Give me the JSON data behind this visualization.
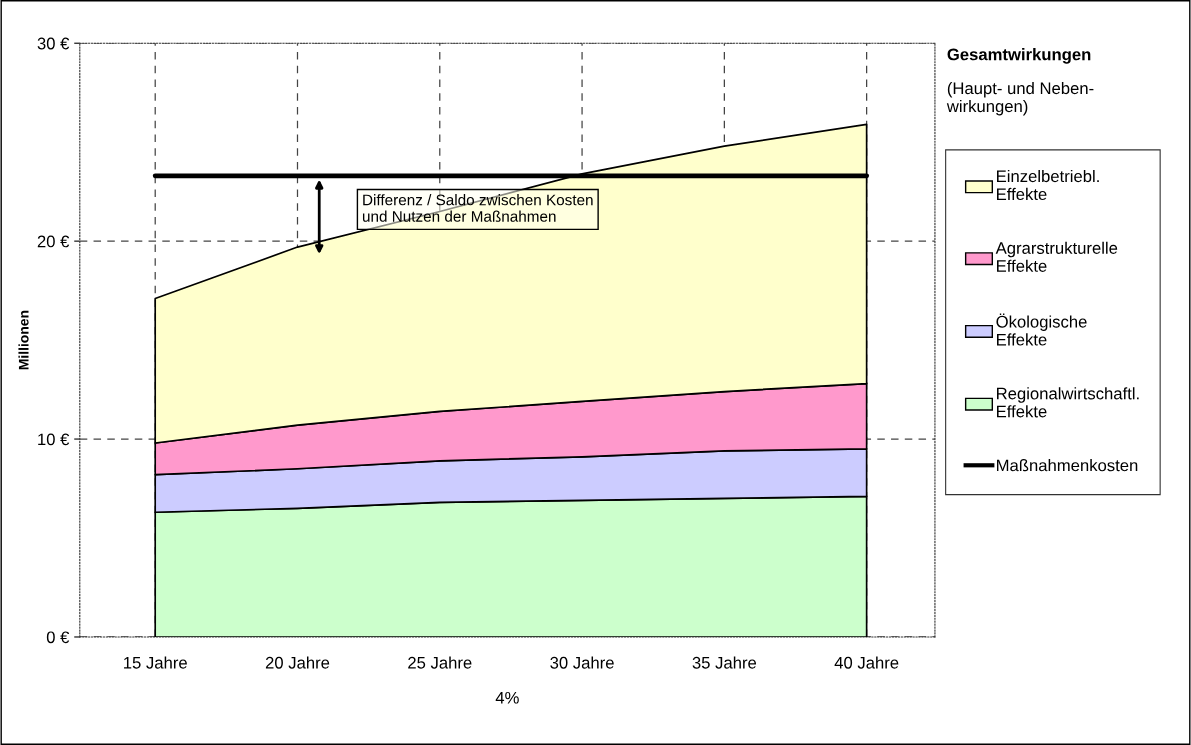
{
  "chart_data": {
    "type": "area",
    "stacked": true,
    "categories": [
      "15 Jahre",
      "20 Jahre",
      "25 Jahre",
      "30 Jahre",
      "35 Jahre",
      "40 Jahre"
    ],
    "series": [
      {
        "name": "Regionalwirtschaftl.\nEffekte",
        "color": "#ccffcc",
        "values": [
          6.3,
          6.5,
          6.8,
          6.9,
          7.0,
          7.1
        ]
      },
      {
        "name": "Ökologische\nEffekte",
        "color": "#ccccff",
        "values": [
          1.9,
          2.0,
          2.1,
          2.2,
          2.4,
          2.4
        ]
      },
      {
        "name": "Agrarstrukturelle\nEffekte",
        "color": "#ff99cc",
        "values": [
          1.6,
          2.2,
          2.5,
          2.8,
          3.0,
          3.3
        ]
      },
      {
        "name": "Einzelbetriebl.\nEffekte",
        "color": "#ffffcc",
        "values": [
          7.3,
          9.0,
          10.1,
          11.5,
          12.4,
          13.1
        ]
      },
      {
        "name": "Maßnahmenkosten",
        "type": "line",
        "color": "#000000",
        "values": [
          23.3,
          23.3,
          23.3,
          23.3,
          23.3,
          23.3
        ]
      }
    ],
    "xlabel": "4%",
    "ylabel": "Millionen",
    "ylim": [
      0,
      30
    ],
    "yticks": [
      {
        "value": 0,
        "label": "0 €"
      },
      {
        "value": 10,
        "label": "10 €"
      },
      {
        "value": 20,
        "label": "20 €"
      },
      {
        "value": 30,
        "label": "30 €"
      }
    ],
    "grid": true,
    "legend": "right",
    "legend_title": "Gesamtwirkungen",
    "annotations": [
      "(Haupt- und Neben-\nwirkungen)",
      "Differenz / Saldo zwischen Kosten\nund Nutzen der Maßnahmen"
    ]
  }
}
